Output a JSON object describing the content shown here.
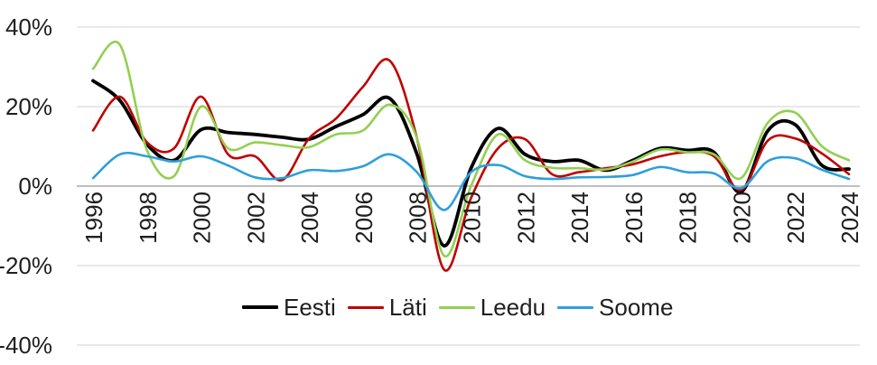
{
  "chart_data": {
    "type": "line",
    "title": "",
    "xlabel": "",
    "ylabel": "",
    "x": [
      1996,
      1997,
      1998,
      1999,
      2000,
      2001,
      2002,
      2003,
      2004,
      2005,
      2006,
      2007,
      2008,
      2009,
      2010,
      2011,
      2012,
      2013,
      2014,
      2015,
      2016,
      2017,
      2018,
      2019,
      2020,
      2021,
      2022,
      2023,
      2024
    ],
    "x_tick_labels": [
      "1996",
      "1998",
      "2000",
      "2002",
      "2004",
      "2006",
      "2008",
      "2010",
      "2012",
      "2014",
      "2016",
      "2018",
      "2020",
      "2022",
      "2024"
    ],
    "y_ticks": [
      {
        "value": 40,
        "label": "40%"
      },
      {
        "value": 20,
        "label": "20%"
      },
      {
        "value": 0,
        "label": "0%"
      },
      {
        "value": -20,
        "label": "-20%"
      },
      {
        "value": -40,
        "label": "-40%"
      }
    ],
    "ylim": [
      -40,
      40
    ],
    "xlim": [
      1996,
      2024
    ],
    "grid": true,
    "line_style": "smooth",
    "legend_position": "bottom",
    "series": [
      {
        "name": "Eesti",
        "color": "#000000",
        "line_width": 3.8,
        "values": [
          26.5,
          21.5,
          10.5,
          6.5,
          14.2,
          13.5,
          13,
          12.3,
          11.8,
          15,
          18,
          22,
          8,
          -15,
          4.5,
          14.5,
          8,
          6.2,
          6.5,
          4,
          6.5,
          9.5,
          9,
          8.5,
          -1.5,
          14,
          15.5,
          5.2,
          4.3
        ]
      },
      {
        "name": "Läti",
        "color": "#C00000",
        "line_width": 2.6,
        "values": [
          14,
          22.5,
          11,
          9.5,
          22.5,
          8,
          7.5,
          1.5,
          12,
          17,
          25,
          31.5,
          12,
          -21,
          -3,
          9.5,
          11.8,
          3,
          3.5,
          4.5,
          5.5,
          7.5,
          8.5,
          7.5,
          -1,
          11.5,
          12,
          8.2,
          3
        ]
      },
      {
        "name": "Leedu",
        "color": "#92D050",
        "line_width": 2.6,
        "values": [
          29.5,
          35.5,
          9,
          2.5,
          20,
          9.5,
          11,
          10.3,
          9.8,
          13,
          14,
          20.5,
          12,
          -17.5,
          0,
          13,
          6.5,
          4.6,
          4.5,
          4.2,
          6.2,
          9.2,
          8.5,
          8,
          2,
          16,
          18.5,
          10,
          6.5
        ]
      },
      {
        "name": "Soome",
        "color": "#2E9FDB",
        "line_width": 2.6,
        "values": [
          2,
          8,
          7.5,
          6.2,
          7.5,
          5.2,
          2.2,
          2,
          4,
          3.8,
          5,
          8,
          3.5,
          -6,
          3.5,
          5.3,
          2.5,
          1.8,
          2.2,
          2.3,
          2.8,
          4.8,
          3.5,
          3.2,
          -0.5,
          6.3,
          7,
          4.1,
          1.8
        ]
      }
    ],
    "colors": {
      "gridline": "#D9D9D9",
      "zero_axis": "#BFBFBF",
      "tick_text": "#1f1f1f"
    }
  }
}
